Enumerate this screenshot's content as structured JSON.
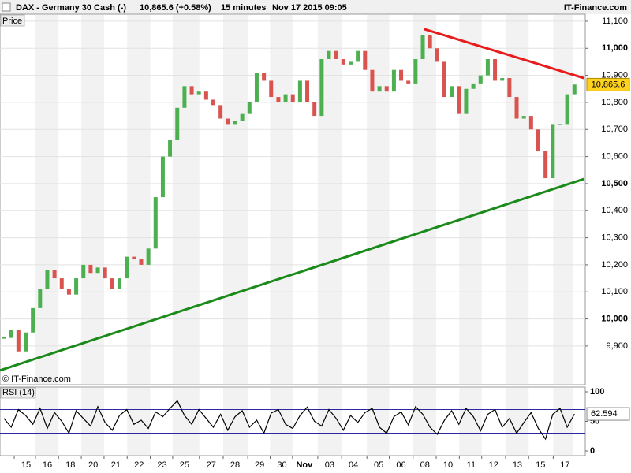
{
  "header": {
    "instrument": "DAX - Germany 30 Cash (-)",
    "quote": "10,865.6 (+0.58%)",
    "interval": "15 minutes",
    "datetime": "Nov 17 2015 09:05",
    "brand": "IT-Finance.com"
  },
  "chart_data": [
    {
      "type": "candlestick",
      "title": "Price",
      "watermark": "© IT-Finance.com",
      "values": [
        9930,
        9960,
        9880,
        9950,
        10040,
        10110,
        10180,
        10150,
        10110,
        10090,
        10150,
        10200,
        10170,
        10190,
        10150,
        10110,
        10150,
        10230,
        10220,
        10200,
        10260,
        10450,
        10600,
        10660,
        10780,
        10860,
        10830,
        10840,
        10810,
        10790,
        10740,
        10720,
        10730,
        10760,
        10800,
        10910,
        10880,
        10820,
        10800,
        10830,
        10800,
        10880,
        10800,
        10750,
        10960,
        10990,
        10960,
        10940,
        10950,
        10990,
        10920,
        10840,
        10860,
        10840,
        10920,
        10880,
        10870,
        10960,
        11050,
        11000,
        10950,
        10820,
        10860,
        10760,
        10850,
        10870,
        10900,
        10960,
        10880,
        10890,
        10820,
        10740,
        10750,
        10700,
        10620,
        10520,
        10720,
        10720,
        10830,
        10866
      ],
      "up_color": "#4caf50",
      "down_color": "#d9534f",
      "last_value": 10865.6,
      "last_label": "10,865.6",
      "xlim": [
        -0.55,
        80.5
      ],
      "xticks": [
        {
          "value": 3.06,
          "label": "15"
        },
        {
          "value": 6.0,
          "label": "16"
        },
        {
          "value": 9.2,
          "label": "18"
        },
        {
          "value": 12.35,
          "label": "20"
        },
        {
          "value": 15.5,
          "label": "21"
        },
        {
          "value": 18.7,
          "label": "22"
        },
        {
          "value": 21.9,
          "label": "23"
        },
        {
          "value": 25.0,
          "label": "25"
        },
        {
          "value": 28.7,
          "label": "27"
        },
        {
          "value": 32.0,
          "label": "28"
        },
        {
          "value": 35.4,
          "label": "29"
        },
        {
          "value": 38.5,
          "label": "30"
        },
        {
          "value": 41.6,
          "label": "Nov"
        },
        {
          "value": 45.1,
          "label": "03"
        },
        {
          "value": 48.4,
          "label": "04"
        },
        {
          "value": 51.9,
          "label": "05"
        },
        {
          "value": 55.0,
          "label": "06"
        },
        {
          "value": 58.3,
          "label": "08"
        },
        {
          "value": 61.5,
          "label": "10"
        },
        {
          "value": 64.7,
          "label": "11"
        },
        {
          "value": 67.8,
          "label": "12"
        },
        {
          "value": 71.1,
          "label": "13"
        },
        {
          "value": 74.3,
          "label": "15"
        },
        {
          "value": 77.7,
          "label": "17"
        }
      ],
      "ylim": [
        9757,
        11126
      ],
      "yticks": [
        {
          "value": 9900,
          "label": "9,900"
        },
        {
          "value": 10000,
          "label": "10,000"
        },
        {
          "value": 10100,
          "label": "10,100"
        },
        {
          "value": 10200,
          "label": "10,200"
        },
        {
          "value": 10300,
          "label": "10,300"
        },
        {
          "value": 10400,
          "label": "10,400"
        },
        {
          "value": 10500,
          "label": "10,500"
        },
        {
          "value": 10600,
          "label": "10,600"
        },
        {
          "value": 10700,
          "label": "10,700"
        },
        {
          "value": 10800,
          "label": "10,800"
        },
        {
          "value": 10900,
          "label": "10,900"
        },
        {
          "value": 11000,
          "label": "11,000"
        },
        {
          "value": 11100,
          "label": "11,100"
        }
      ],
      "grid": true,
      "trendlines": [
        {
          "color": "#e81c1c",
          "start": [
            58.2,
            11071
          ],
          "end": [
            80.3,
            10890
          ]
        },
        {
          "color": "#1a8a1a",
          "start": [
            -0.55,
            9810
          ],
          "end": [
            80.3,
            10517
          ]
        }
      ]
    },
    {
      "type": "line",
      "title": "RSI (14)",
      "color": "#000000",
      "values": [
        55,
        40,
        70,
        60,
        45,
        72,
        38,
        65,
        50,
        30,
        68,
        55,
        42,
        75,
        48,
        35,
        60,
        70,
        45,
        52,
        38,
        66,
        58,
        72,
        85,
        60,
        45,
        70,
        55,
        40,
        62,
        35,
        58,
        68,
        40,
        52,
        30,
        64,
        70,
        45,
        38,
        60,
        74,
        50,
        42,
        70,
        55,
        35,
        60,
        48,
        65,
        72,
        40,
        30,
        58,
        66,
        44,
        75,
        62,
        40,
        28,
        52,
        68,
        45,
        72,
        58,
        34,
        62,
        70,
        40,
        55,
        30,
        48,
        65,
        38,
        20,
        62,
        72,
        40,
        62.594
      ],
      "last_label": "62.594",
      "ylim": [
        -8,
        108
      ],
      "yticks": [
        0,
        50,
        100
      ],
      "levels": [
        30,
        70
      ],
      "level_color": "#2a2aa0"
    }
  ]
}
